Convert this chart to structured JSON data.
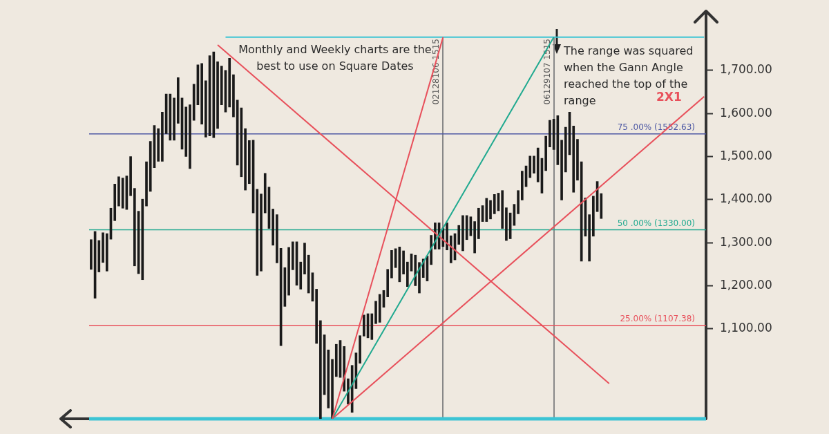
{
  "chart_data": {
    "type": "bar",
    "annotations": [
      "Monthly and Weekly charts are the best to use on Square Dates",
      "The range was squared when the Gann Angle reached the top of the range",
      "2X1",
      "02128106 1515",
      "06129107 1515"
    ],
    "categories": [
      null,
      null,
      null,
      null,
      null,
      null,
      null,
      null,
      null,
      null,
      null,
      null,
      null,
      null,
      null,
      null,
      null,
      null,
      null,
      null,
      null,
      null,
      null,
      null,
      null,
      null,
      null,
      null,
      null,
      null,
      null,
      null,
      null,
      null,
      null,
      null,
      null,
      null,
      null,
      null,
      null,
      null,
      null,
      null,
      null,
      null,
      null,
      null,
      null,
      null,
      null,
      null,
      null,
      null,
      null,
      null,
      null,
      null,
      null,
      null,
      null,
      null,
      null,
      null,
      null,
      null,
      null,
      null,
      null,
      null,
      null,
      null,
      null,
      null,
      null,
      null,
      null,
      null,
      null,
      null,
      null,
      null,
      null,
      null,
      null,
      null,
      null,
      null,
      null,
      null,
      null,
      null,
      null,
      null,
      null,
      null,
      null,
      null,
      null,
      null,
      null,
      null,
      null,
      null,
      null,
      null,
      null,
      null,
      null,
      null,
      null,
      null,
      null,
      null,
      null,
      null,
      null,
      null,
      null,
      null,
      null,
      null,
      null,
      null,
      null,
      null,
      null,
      null,
      null,
      null,
      null,
      null,
      null,
      null,
      null,
      null,
      null,
      null,
      null,
      null,
      null,
      null,
      null,
      null,
      null,
      null,
      null,
      null,
      null,
      null,
      null,
      null,
      null,
      null,
      null,
      null
    ],
    "series": [
      {
        "color": "#1a1a1a",
        "base": [
          1238,
          1171,
          1232,
          1254,
          1234,
          1308,
          1351,
          1385,
          1380,
          1377,
          1409,
          1246,
          1228,
          1214,
          1385,
          1419,
          1474,
          1489,
          1489,
          1553,
          1538,
          1538,
          1577,
          1517,
          1500,
          1472,
          1584,
          1620,
          1575,
          1545,
          1548,
          1544,
          1565,
          1620,
          1603,
          1615,
          1592,
          1480,
          1453,
          1422,
          1437,
          1369,
          1224,
          1234,
          1369,
          1333,
          1294,
          1253,
          1061,
          1152,
          1178,
          1237,
          1201,
          1192,
          1227,
          1183,
          1164,
          1066,
          891,
          947,
          916,
          892,
          989,
          987,
          955,
          925,
          906,
          961,
          1020,
          1083,
          1079,
          1075,
          1112,
          1115,
          1150,
          1174,
          1218,
          1242,
          1209,
          1227,
          1198,
          1234,
          1200,
          1183,
          1219,
          1211,
          1249,
          1285,
          1285,
          1291,
          1283,
          1253,
          1260,
          1296,
          1281,
          1307,
          1316,
          1276,
          1309,
          1349,
          1349,
          1355,
          1367,
          1374,
          1333,
          1305,
          1309,
          1340,
          1367,
          1399,
          1430,
          1451,
          1461,
          1441,
          1415,
          1467,
          1522,
          1516,
          1481,
          1399,
          1464,
          1504,
          1417,
          1445,
          1257,
          1315,
          1257,
          1315,
          1372,
          1356,
          null,
          null,
          null,
          null,
          null,
          null,
          null,
          null,
          null,
          null,
          null,
          null,
          null,
          null,
          null,
          null,
          null,
          null,
          null,
          null,
          null,
          null,
          null,
          null,
          null,
          null
        ],
        "values": [
          69,
          155,
          73,
          69,
          87,
          72,
          85,
          68,
          70,
          78,
          91,
          180,
          145,
          187,
          103,
          116,
          98,
          76,
          114,
          92,
          107,
          98,
          106,
          119,
          115,
          148,
          84,
          93,
          141,
          131,
          186,
          199,
          155,
          90,
          97,
          113,
          98,
          151,
          160,
          143,
          100,
          169,
          200,
          179,
          92,
          96,
          84,
          112,
          226,
          90,
          111,
          65,
          101,
          63,
          72,
          88,
          66,
          126,
          228,
          139,
          135,
          137,
          75,
          86,
          104,
          59,
          109,
          83,
          64,
          49,
          56,
          60,
          52,
          65,
          39,
          64,
          64,
          44,
          81,
          54,
          57,
          40,
          71,
          71,
          43,
          58,
          68,
          61,
          61,
          43,
          63,
          63,
          61,
          44,
          82,
          56,
          44,
          73,
          71,
          37,
          54,
          43,
          45,
          41,
          88,
          76,
          60,
          49,
          54,
          67,
          48,
          50,
          40,
          79,
          81,
          80,
          62,
          71,
          114,
          139,
          104,
          99,
          154,
          95,
          231,
          89,
          108,
          93,
          70,
          58,
          null,
          null,
          null,
          null,
          null,
          null,
          null,
          null,
          null,
          null,
          null,
          null,
          null,
          null,
          null,
          null,
          null,
          null,
          null,
          null,
          null,
          null,
          null,
          null,
          null,
          null
        ]
      },
      {
        "type": "line",
        "color": "#e8505b",
        "values": [
          null,
          null,
          null,
          null,
          null,
          null,
          null,
          null,
          null,
          null,
          null,
          null,
          null,
          null,
          null,
          null,
          null,
          null,
          null,
          null,
          null,
          null,
          null,
          null,
          null,
          null,
          null,
          null,
          null,
          null,
          null,
          null,
          null,
          null,
          null,
          null,
          null,
          null,
          null,
          null,
          null,
          null,
          null,
          null,
          null,
          null,
          null,
          null,
          null,
          null,
          null,
          null,
          null,
          null,
          null,
          null,
          null,
          null,
          null,
          null,
          null,
          891,
          null,
          null,
          null,
          null,
          null,
          null,
          null,
          null,
          null,
          null,
          null,
          null,
          null,
          null,
          null,
          null,
          null,
          null,
          null,
          null,
          null,
          null,
          null,
          null,
          null,
          null,
          null,
          1777,
          null,
          null,
          null,
          null,
          null,
          null,
          null,
          null,
          null,
          null,
          null,
          null,
          null,
          null,
          null,
          null,
          null,
          null,
          null,
          null,
          null,
          null,
          null,
          null,
          null,
          null,
          null,
          null,
          null,
          null,
          null,
          null,
          null,
          null,
          null,
          null,
          null,
          null,
          null,
          null,
          null,
          null,
          null,
          null,
          null,
          null,
          null,
          null,
          null,
          null,
          null,
          null,
          null,
          null,
          null,
          null,
          null,
          null,
          null,
          null,
          null,
          null,
          null,
          null,
          null,
          null
        ]
      },
      {
        "type": "line",
        "color": "#1fa98f",
        "values": [
          null,
          null,
          null,
          null,
          null,
          null,
          null,
          null,
          null,
          null,
          null,
          null,
          null,
          null,
          null,
          null,
          null,
          null,
          null,
          null,
          null,
          null,
          null,
          null,
          null,
          null,
          null,
          null,
          null,
          null,
          null,
          null,
          null,
          null,
          null,
          null,
          null,
          null,
          null,
          null,
          null,
          null,
          null,
          null,
          null,
          null,
          null,
          null,
          null,
          null,
          null,
          null,
          null,
          null,
          null,
          null,
          null,
          null,
          null,
          null,
          null,
          891,
          null,
          null,
          null,
          null,
          null,
          null,
          null,
          null,
          null,
          null,
          null,
          null,
          null,
          null,
          null,
          null,
          null,
          null,
          null,
          null,
          null,
          null,
          null,
          null,
          null,
          null,
          null,
          null,
          null,
          null,
          null,
          null,
          null,
          null,
          null,
          null,
          null,
          null,
          null,
          null,
          null,
          null,
          null,
          null,
          null,
          null,
          null,
          null,
          null,
          null,
          null,
          null,
          null,
          null,
          null,
          1777,
          null,
          null,
          null,
          null,
          null,
          null,
          null,
          null,
          null,
          null,
          null,
          null,
          null,
          null,
          null,
          null,
          null,
          null,
          null,
          null,
          null,
          null,
          null,
          null,
          null,
          null,
          null,
          null,
          null,
          null,
          null,
          null,
          null,
          null,
          null,
          null,
          null,
          null
        ]
      },
      {
        "type": "line",
        "color": "#e8505b",
        "values": [
          null,
          null,
          null,
          null,
          null,
          null,
          null,
          null,
          null,
          null,
          null,
          null,
          null,
          null,
          null,
          null,
          null,
          null,
          null,
          null,
          null,
          null,
          null,
          null,
          null,
          null,
          null,
          null,
          null,
          null,
          null,
          null,
          null,
          null,
          null,
          null,
          null,
          null,
          null,
          null,
          null,
          null,
          null,
          null,
          null,
          null,
          null,
          null,
          null,
          null,
          null,
          null,
          null,
          null,
          null,
          null,
          null,
          null,
          null,
          null,
          null,
          891,
          null,
          null,
          null,
          null,
          null,
          null,
          null,
          null,
          null,
          null,
          null,
          null,
          null,
          null,
          null,
          null,
          null,
          null,
          null,
          null,
          null,
          null,
          null,
          null,
          null,
          null,
          null,
          null,
          null,
          null,
          null,
          null,
          null,
          null,
          null,
          null,
          null,
          null,
          null,
          null,
          null,
          null,
          null,
          null,
          null,
          null,
          null,
          null,
          null,
          null,
          null,
          null,
          null,
          null,
          null,
          null,
          null,
          null,
          null,
          null,
          null,
          null,
          null,
          null,
          null,
          null,
          null,
          null,
          null,
          null,
          null,
          null,
          null,
          null,
          null,
          null,
          null,
          null,
          null,
          null,
          null,
          null,
          null,
          null,
          null,
          null,
          null,
          null,
          null,
          null,
          null,
          null,
          null,
          1639
        ]
      },
      {
        "type": "line",
        "color": "#e8505b",
        "values": [
          null,
          null,
          null,
          null,
          null,
          null,
          null,
          null,
          null,
          null,
          null,
          null,
          null,
          null,
          null,
          null,
          null,
          null,
          null,
          null,
          null,
          null,
          null,
          null,
          null,
          null,
          null,
          null,
          null,
          null,
          null,
          null,
          1759,
          null,
          null,
          null,
          null,
          null,
          null,
          null,
          null,
          null,
          null,
          null,
          null,
          null,
          null,
          null,
          null,
          null,
          null,
          null,
          null,
          null,
          null,
          null,
          null,
          null,
          null,
          null,
          null,
          null,
          null,
          null,
          null,
          null,
          null,
          null,
          null,
          null,
          null,
          null,
          null,
          null,
          null,
          null,
          null,
          null,
          null,
          null,
          null,
          null,
          null,
          null,
          null,
          null,
          null,
          null,
          null,
          null,
          null,
          null,
          null,
          null,
          null,
          null,
          null,
          null,
          null,
          null,
          null,
          null,
          null,
          null,
          null,
          null,
          null,
          null,
          null,
          null,
          null,
          null,
          null,
          null,
          null,
          null,
          null,
          null,
          null,
          null,
          null,
          null,
          null,
          null,
          null,
          null,
          null,
          null,
          null,
          null,
          null,
          973,
          null,
          null,
          null,
          null,
          null,
          null,
          null,
          null,
          null,
          null,
          null,
          null,
          null,
          null,
          null,
          null,
          null,
          null,
          null,
          null,
          null,
          null,
          null,
          null
        ]
      },
      {
        "type": "line",
        "color": "#3cc4d4",
        "values": [
          null,
          null,
          null,
          null,
          null,
          null,
          null,
          null,
          null,
          null,
          null,
          null,
          null,
          null,
          null,
          null,
          null,
          null,
          null,
          null,
          null,
          null,
          null,
          null,
          null,
          null,
          null,
          null,
          null,
          null,
          null,
          null,
          null,
          null,
          1777,
          null,
          null,
          null,
          null,
          null,
          null,
          null,
          null,
          null,
          null,
          null,
          null,
          null,
          null,
          null,
          null,
          null,
          null,
          null,
          null,
          null,
          null,
          null,
          null,
          null,
          null,
          null,
          null,
          null,
          null,
          null,
          null,
          null,
          null,
          null,
          null,
          null,
          null,
          null,
          null,
          null,
          null,
          null,
          null,
          null,
          null,
          null,
          null,
          null,
          null,
          null,
          null,
          null,
          null,
          null,
          null,
          null,
          null,
          null,
          null,
          null,
          null,
          null,
          null,
          null,
          null,
          null,
          null,
          null,
          null,
          null,
          null,
          null,
          null,
          null,
          null,
          null,
          null,
          null,
          null,
          null,
          null,
          null,
          null,
          null,
          null,
          null,
          null,
          null,
          null,
          null,
          null,
          null,
          null,
          null,
          null,
          null,
          null,
          null,
          null,
          null,
          null,
          null,
          null,
          null,
          null,
          null,
          null,
          null,
          null,
          null,
          null,
          null,
          null,
          null,
          null,
          null,
          null,
          null,
          null,
          1777
        ]
      }
    ],
    "ref_lines": [
      {
        "axis": "y",
        "value": 891,
        "color": "#3cc4d4"
      },
      {
        "axis": "y",
        "value": 1552.63,
        "label": "75 .00% (1552.63)",
        "color": "#4a55a2"
      },
      {
        "axis": "y",
        "value": 1330,
        "label": "50 .00% (1330.00)",
        "color": "#1fa98f"
      },
      {
        "axis": "y",
        "value": 1107.38,
        "label": "25.00% (1107.38)",
        "color": "#e8505b"
      }
    ],
    "ylim": [
      891,
      1831
    ],
    "yticks": [
      {
        "value": 1100,
        "label": "1,100.00"
      },
      {
        "value": 1200,
        "label": "1,200.00"
      },
      {
        "value": 1300,
        "label": "1,300.00"
      },
      {
        "value": 1400,
        "label": "1,400.00"
      },
      {
        "value": 1500,
        "label": "1,500.00"
      },
      {
        "value": 1600,
        "label": "1,600.00"
      },
      {
        "value": 1700,
        "label": "1,700.00"
      }
    ],
    "tick_labels": "y"
  }
}
